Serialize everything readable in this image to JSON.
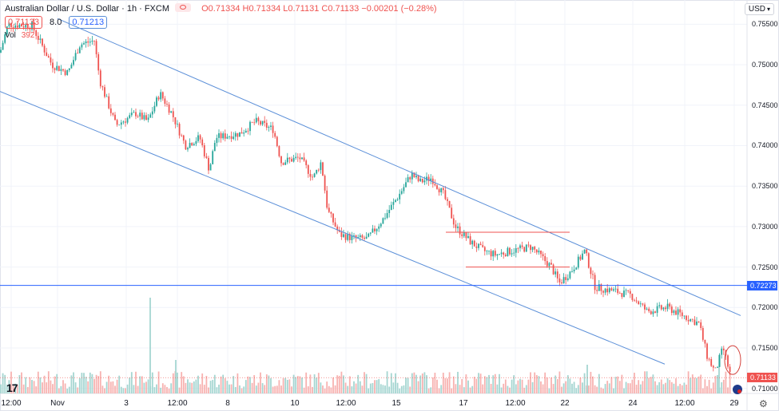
{
  "header": {
    "symbol_title": "Australian Dollar / U.S. Dollar · 1h · FXCM",
    "ohlc_text": "O0.71334 H0.71334 L0.71131 C0.71133 −0.00201 (−0.28%)",
    "bid": "0.71133",
    "spread": "8.0",
    "ask": "0.71213",
    "vol_label": "Vol",
    "vol_value": "392",
    "currency": "USD"
  },
  "price_axis": {
    "ticks": [
      "0.75500",
      "0.75000",
      "0.74500",
      "0.74000",
      "0.73500",
      "0.73000",
      "0.72500",
      "0.72000",
      "0.71500",
      "0.71000"
    ],
    "tags": [
      {
        "label": "0.72273",
        "value": 0.72273,
        "color": "#2962ff"
      },
      {
        "label": "0.71133",
        "value": 0.71133,
        "color": "#ef5350"
      }
    ]
  },
  "time_axis": {
    "labels": [
      "12:00",
      "Nov",
      "3",
      "12:00",
      "8",
      "10",
      "12:00",
      "15",
      "17",
      "12:00",
      "22",
      "24",
      "12:00",
      "29"
    ]
  },
  "icons": {
    "logo": "tradingview-logo",
    "settings": "gear-icon",
    "flag": "au-flag-icon"
  },
  "colors": {
    "up": "#26a69a",
    "down": "#ef5350",
    "line": "#5b8fd8",
    "hline": "#2962ff"
  },
  "chart_data": {
    "type": "candlestick",
    "title": "Australian Dollar / U.S. Dollar",
    "interval": "1h",
    "source": "FXCM",
    "ylim": [
      0.7075,
      0.758
    ],
    "last_close": 0.71133,
    "path": [
      [
        0,
        0.7515
      ],
      [
        10,
        0.755
      ],
      [
        40,
        0.7548
      ],
      [
        65,
        0.75
      ],
      [
        85,
        0.749
      ],
      [
        100,
        0.7525
      ],
      [
        118,
        0.753
      ],
      [
        125,
        0.748
      ],
      [
        145,
        0.7425
      ],
      [
        170,
        0.744
      ],
      [
        185,
        0.743
      ],
      [
        200,
        0.7465
      ],
      [
        215,
        0.744
      ],
      [
        232,
        0.74
      ],
      [
        250,
        0.741
      ],
      [
        262,
        0.737
      ],
      [
        270,
        0.741
      ],
      [
        300,
        0.7415
      ],
      [
        320,
        0.743
      ],
      [
        342,
        0.742
      ],
      [
        352,
        0.738
      ],
      [
        375,
        0.7385
      ],
      [
        392,
        0.736
      ],
      [
        402,
        0.738
      ],
      [
        410,
        0.732
      ],
      [
        425,
        0.729
      ],
      [
        445,
        0.7285
      ],
      [
        460,
        0.7285
      ],
      [
        480,
        0.731
      ],
      [
        500,
        0.734
      ],
      [
        515,
        0.7365
      ],
      [
        525,
        0.7355
      ],
      [
        540,
        0.736
      ],
      [
        555,
        0.734
      ],
      [
        570,
        0.73
      ],
      [
        590,
        0.728
      ],
      [
        605,
        0.727
      ],
      [
        620,
        0.7265
      ],
      [
        640,
        0.727
      ],
      [
        665,
        0.7275
      ],
      [
        690,
        0.725
      ],
      [
        700,
        0.723
      ],
      [
        715,
        0.7245
      ],
      [
        732,
        0.727
      ],
      [
        745,
        0.7225
      ],
      [
        770,
        0.722
      ],
      [
        790,
        0.7215
      ],
      [
        810,
        0.7195
      ],
      [
        835,
        0.72
      ],
      [
        855,
        0.719
      ],
      [
        875,
        0.718
      ],
      [
        885,
        0.714
      ],
      [
        895,
        0.712
      ],
      [
        905,
        0.715
      ],
      [
        915,
        0.7113
      ]
    ],
    "channel_upper": [
      [
        72,
        0.7557
      ],
      [
        927,
        0.719
      ]
    ],
    "channel_lower": [
      [
        0,
        0.7467
      ],
      [
        832,
        0.713
      ]
    ],
    "horizontal_line": 0.72273,
    "range_box_top": {
      "value": 0.7293,
      "x": [
        558,
        713
      ]
    },
    "range_box_bottom": {
      "value": 0.725,
      "x": [
        583,
        713
      ]
    },
    "volume_spikes": [
      {
        "x": 188,
        "v": 1.0
      },
      {
        "x": 220,
        "v": 0.35
      },
      {
        "x": 735,
        "v": 0.3
      },
      {
        "x": 900,
        "v": 0.4
      }
    ],
    "highlight_last": true
  }
}
